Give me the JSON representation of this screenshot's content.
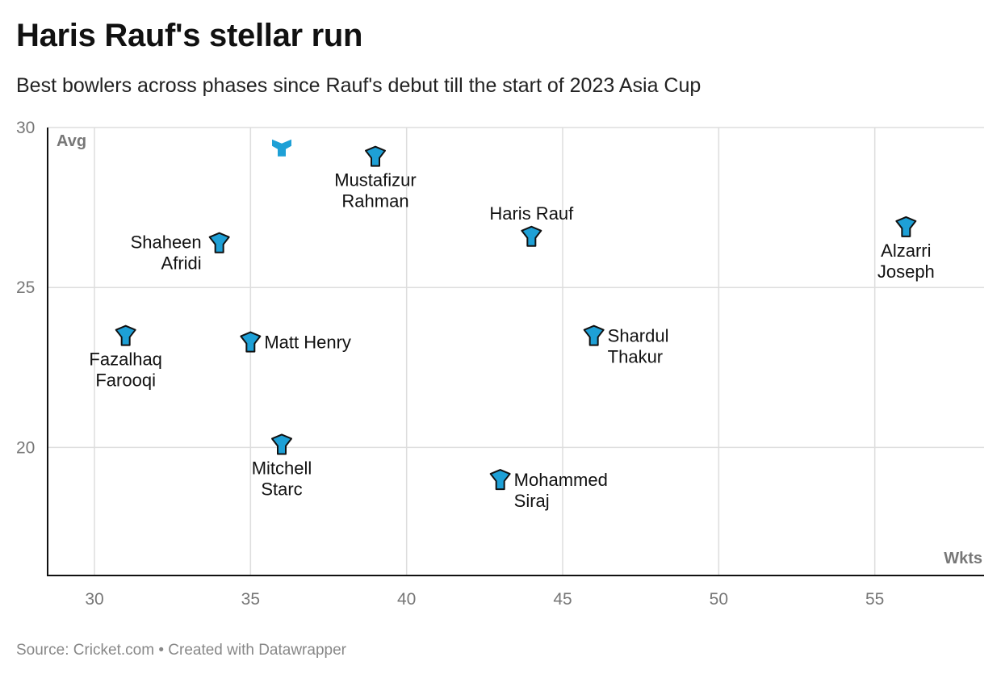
{
  "title": "Haris Rauf's stellar run",
  "subtitle": "Best bowlers across phases since Rauf's debut till the start of 2023 Asia Cup",
  "footer": {
    "source": "Source: Cricket.com",
    "separator": "•",
    "credit": "Created with Datawrapper"
  },
  "colors": {
    "marker_fill": "#1ea0d6",
    "marker_stroke": "#111111",
    "highlight_fill": "#1ea0d6",
    "grid": "#dddddd",
    "axis": "#111111",
    "tick_text": "#777777",
    "axis_title": "#777777"
  },
  "chart_data": {
    "type": "scatter",
    "xlabel": "Wkts",
    "ylabel": "Avg",
    "xlim": [
      28.5,
      58.5
    ],
    "ylim": [
      16,
      30
    ],
    "xticks": [
      30,
      35,
      40,
      45,
      50,
      55
    ],
    "yticks": [
      20,
      25,
      30
    ],
    "grid": true,
    "marker": "y-shaped",
    "points": [
      {
        "name": "Mustafizur Rahman",
        "label_lines": [
          "Mustafizur",
          "Rahman"
        ],
        "x": 39,
        "y": 29.1,
        "label_pos": "below"
      },
      {
        "name": "",
        "label_lines": [],
        "x": 36,
        "y": 29.4,
        "label_pos": "none",
        "highlight": true
      },
      {
        "name": "Haris Rauf",
        "label_lines": [
          "Haris Rauf"
        ],
        "x": 44,
        "y": 26.6,
        "label_pos": "above"
      },
      {
        "name": "Alzarri Joseph",
        "label_lines": [
          "Alzarri",
          "Joseph"
        ],
        "x": 56,
        "y": 26.9,
        "label_pos": "below"
      },
      {
        "name": "Shaheen Afridi",
        "label_lines": [
          "Shaheen",
          "Afridi"
        ],
        "x": 34,
        "y": 26.4,
        "label_pos": "left"
      },
      {
        "name": "Fazalhaq Farooqi",
        "label_lines": [
          "Fazalhaq",
          "Farooqi"
        ],
        "x": 31,
        "y": 23.5,
        "label_pos": "below"
      },
      {
        "name": "Matt Henry",
        "label_lines": [
          "Matt Henry"
        ],
        "x": 35,
        "y": 23.3,
        "label_pos": "right"
      },
      {
        "name": "Shardul Thakur",
        "label_lines": [
          "Shardul",
          "Thakur"
        ],
        "x": 46,
        "y": 23.5,
        "label_pos": "right"
      },
      {
        "name": "Mitchell Starc",
        "label_lines": [
          "Mitchell",
          "Starc"
        ],
        "x": 36,
        "y": 20.1,
        "label_pos": "below"
      },
      {
        "name": "Mohammed Siraj",
        "label_lines": [
          "Mohammed",
          "Siraj"
        ],
        "x": 43,
        "y": 19,
        "label_pos": "right"
      }
    ]
  }
}
